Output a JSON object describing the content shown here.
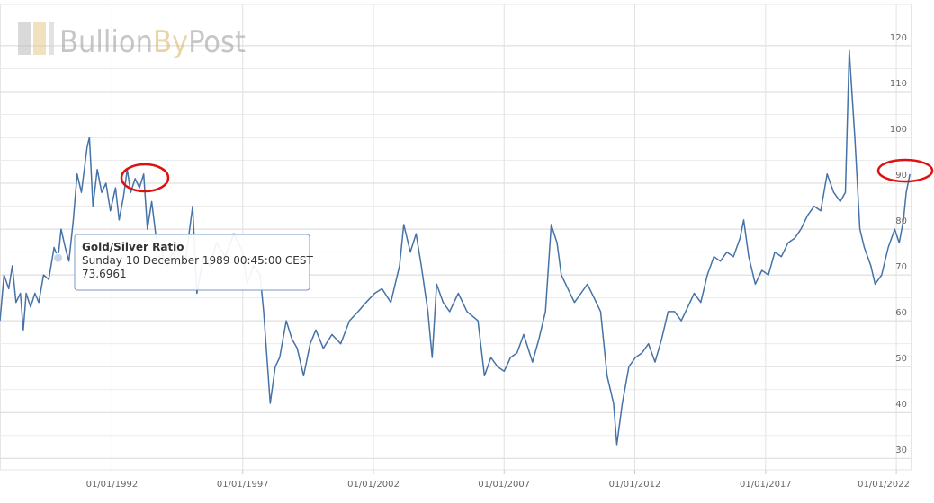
{
  "chart_data": {
    "type": "line",
    "watermark": [
      "Bullion",
      "By",
      "Post"
    ],
    "x": [
      "1987-09-20",
      "1987-11-15",
      "1988-01-20",
      "1988-03-10",
      "1988-05-01",
      "1988-07-01",
      "1988-08-10",
      "1988-09-20",
      "1988-11-20",
      "1989-01-20",
      "1989-03-15",
      "1989-05-20",
      "1989-08-01",
      "1989-10-15",
      "1989-12-10",
      "1990-01-20",
      "1990-03-20",
      "1990-05-10",
      "1990-07-10",
      "1990-09-01",
      "1990-11-01",
      "1991-01-20",
      "1991-02-20",
      "1991-04-10",
      "1991-06-10",
      "1991-08-10",
      "1991-10-10",
      "1991-12-10",
      "1992-02-20",
      "1992-04-10",
      "1992-06-10",
      "1992-08-01",
      "1992-09-20",
      "1992-11-20",
      "1993-01-20",
      "1993-03-20",
      "1993-05-10",
      "1993-07-10",
      "1993-09-10",
      "1993-11-10",
      "1994-02-01",
      "1994-05-01",
      "1994-08-01",
      "1994-11-01",
      "1995-02-01",
      "1995-04-01",
      "1995-07-01",
      "1995-10-01",
      "1996-01-01",
      "1996-05-01",
      "1996-09-01",
      "1997-01-01",
      "1997-03-01",
      "1997-06-01",
      "1997-09-01",
      "1997-10-20",
      "1998-01-20",
      "1998-04-01",
      "1998-06-01",
      "1998-09-01",
      "1998-11-20",
      "1999-02-01",
      "1999-05-01",
      "1999-08-01",
      "1999-10-20",
      "2000-02-01",
      "2000-06-01",
      "2000-10-01",
      "2001-02-01",
      "2001-06-01",
      "2001-09-20",
      "2002-01-20",
      "2002-05-01",
      "2002-09-01",
      "2003-01-01",
      "2003-03-01",
      "2003-06-01",
      "2003-08-20",
      "2003-11-01",
      "2004-02-01",
      "2004-04-01",
      "2004-06-01",
      "2004-09-01",
      "2004-12-01",
      "2005-04-01",
      "2005-08-01",
      "2006-01-01",
      "2006-04-01",
      "2006-07-01",
      "2006-10-01",
      "2007-01-01",
      "2007-04-01",
      "2007-07-01",
      "2007-10-01",
      "2008-02-01",
      "2008-05-01",
      "2008-08-01",
      "2008-10-20",
      "2009-01-10",
      "2009-03-10",
      "2009-06-10",
      "2009-09-10",
      "2009-12-10",
      "2010-03-10",
      "2010-06-10",
      "2010-09-10",
      "2010-12-10",
      "2011-03-10",
      "2011-04-25",
      "2011-07-10",
      "2011-10-10",
      "2012-01-10",
      "2012-04-10",
      "2012-07-10",
      "2012-10-10",
      "2013-01-10",
      "2013-04-10",
      "2013-07-10",
      "2013-10-10",
      "2014-01-10",
      "2014-04-10",
      "2014-07-10",
      "2014-10-10",
      "2015-01-10",
      "2015-04-10",
      "2015-07-10",
      "2015-10-10",
      "2016-01-10",
      "2016-03-01",
      "2016-05-10",
      "2016-08-10",
      "2016-11-10",
      "2017-02-10",
      "2017-05-10",
      "2017-08-10",
      "2017-11-10",
      "2018-02-10",
      "2018-05-10",
      "2018-08-10",
      "2018-11-10",
      "2019-02-10",
      "2019-05-10",
      "2019-08-10",
      "2019-11-10",
      "2020-01-20",
      "2020-03-15",
      "2020-04-20",
      "2020-06-01",
      "2020-08-10",
      "2020-10-10",
      "2021-01-10",
      "2021-03-10",
      "2021-06-10",
      "2021-09-10",
      "2021-12-10",
      "2022-02-10",
      "2022-04-10",
      "2022-05-20",
      "2022-07-10"
    ],
    "series": [
      {
        "name": "Gold/Silver Ratio",
        "color": "#4572a7",
        "values": [
          60,
          70,
          67,
          72,
          64,
          66,
          58,
          66,
          63,
          66,
          64,
          70,
          69,
          76,
          73.7,
          80,
          76,
          73,
          82,
          92,
          88,
          98,
          100,
          85,
          93,
          88,
          90,
          84,
          89,
          82,
          87,
          93,
          88,
          91,
          89,
          92,
          80,
          86,
          78,
          76,
          72,
          75,
          72,
          74,
          85,
          66,
          74,
          72,
          77,
          74,
          79,
          75,
          68,
          72,
          70,
          62,
          42,
          50,
          52,
          60,
          56,
          54,
          48,
          55,
          58,
          54,
          57,
          55,
          60,
          62,
          64,
          66,
          67,
          64,
          72,
          81,
          75,
          79,
          72,
          62,
          52,
          68,
          64,
          62,
          66,
          62,
          60,
          48,
          52,
          50,
          49,
          52,
          53,
          57,
          51,
          56,
          62,
          81,
          77,
          70,
          67,
          64,
          66,
          68,
          65,
          62,
          48,
          42,
          33,
          42,
          50,
          52,
          53,
          55,
          51,
          56,
          62,
          62,
          60,
          63,
          66,
          64,
          70,
          74,
          73,
          75,
          74,
          78,
          82,
          74,
          68,
          71,
          70,
          75,
          74,
          77,
          78,
          80,
          83,
          85,
          84,
          92,
          88,
          86,
          88,
          119,
          110,
          100,
          80,
          76,
          72,
          68,
          70,
          76,
          80,
          77,
          82,
          88,
          92
        ]
      }
    ],
    "tooltip": {
      "x": "1989-12-10",
      "label": "Sunday 10 December 1989 00:45:00 CEST",
      "value": 73.6961
    },
    "xlim": [
      "1987-09-20",
      "2022-07-20"
    ],
    "xticks": [
      {
        "value": "1992-01-01",
        "label": "01/01/1992"
      },
      {
        "value": "1997-01-01",
        "label": "01/01/1997"
      },
      {
        "value": "2002-01-01",
        "label": "01/01/2002"
      },
      {
        "value": "2007-01-01",
        "label": "01/01/2007"
      },
      {
        "value": "2012-01-01",
        "label": "01/01/2012"
      },
      {
        "value": "2017-01-01",
        "label": "01/01/2017"
      },
      {
        "value": "2022-01-01",
        "label": "01/01/2022"
      }
    ],
    "ylim": [
      27.5,
      129
    ],
    "yticks": [
      30,
      40,
      50,
      60,
      70,
      80,
      90,
      100,
      110,
      120
    ],
    "grid": true
  }
}
